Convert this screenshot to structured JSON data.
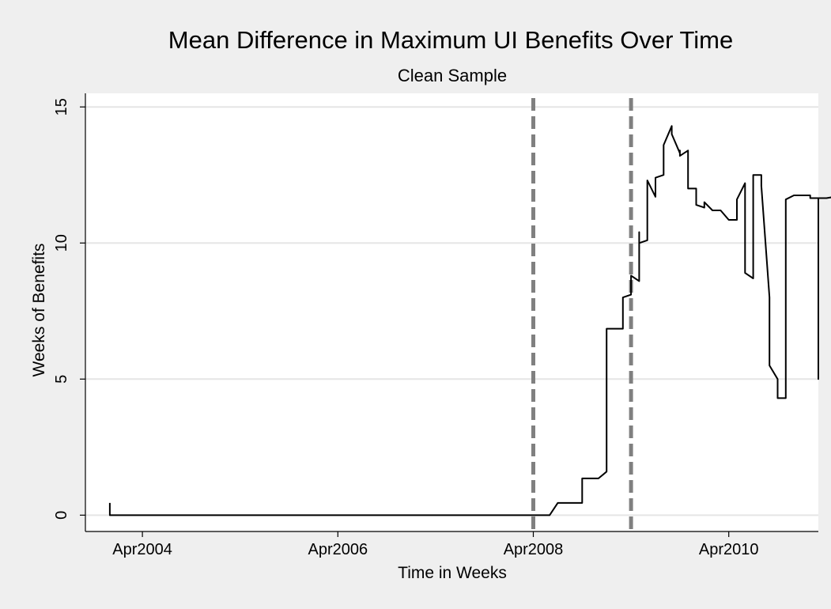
{
  "chart_data": {
    "type": "line",
    "title": "Mean Difference in Maximum UI Benefits Over Time",
    "subtitle": "Clean Sample",
    "xlabel": "Time in Weeks",
    "ylabel": "Weeks of Benefits",
    "x_ticks": [
      "Apr2004",
      "Apr2006",
      "Apr2008",
      "Apr2010"
    ],
    "y_ticks": [
      0,
      5,
      10,
      15
    ],
    "xlim": [
      "2003-09",
      "2011-03"
    ],
    "ylim": [
      -0.6,
      15.5
    ],
    "grid": "horizontal",
    "colors": {
      "line": "#000000",
      "reference": "#808080",
      "grid": "#e5e5e5",
      "plot_bg": "#ffffff",
      "page_bg": "#efefef"
    },
    "reference_lines": [
      {
        "x": "2008-04",
        "style": "dashed"
      },
      {
        "x": "2009-04",
        "style": "dashed"
      }
    ],
    "series": [
      {
        "points": [
          [
            "2003-12",
            0.45
          ],
          [
            "2003-12",
            0.0
          ],
          [
            "2008-04",
            0.0
          ],
          [
            "2008-06",
            0.0
          ],
          [
            "2008-07",
            0.45
          ],
          [
            "2008-10",
            0.45
          ],
          [
            "2008-10",
            1.35
          ],
          [
            "2008-12",
            1.35
          ],
          [
            "2009-01",
            1.6
          ],
          [
            "2009-01",
            6.85
          ],
          [
            "2009-02",
            6.85
          ],
          [
            "2009-03",
            6.85
          ],
          [
            "2009-03",
            7.6
          ],
          [
            "2009-03",
            8.0
          ],
          [
            "2009-04",
            8.1
          ],
          [
            "2009-04",
            8.8
          ],
          [
            "2009-05",
            8.6
          ],
          [
            "2009-05",
            10.4
          ],
          [
            "2009-05",
            10.0
          ],
          [
            "2009-06",
            10.1
          ],
          [
            "2009-06",
            11.1
          ],
          [
            "2009-06",
            12.3
          ],
          [
            "2009-07",
            11.7
          ],
          [
            "2009-07",
            12.4
          ],
          [
            "2009-08",
            12.5
          ],
          [
            "2009-08",
            13.6
          ],
          [
            "2009-09",
            14.3
          ],
          [
            "2009-09",
            14.0
          ],
          [
            "2009-10",
            13.3
          ],
          [
            "2009-10",
            13.4
          ],
          [
            "2009-10",
            13.2
          ],
          [
            "2009-11",
            13.4
          ],
          [
            "2009-11",
            12.0
          ],
          [
            "2009-12",
            12.0
          ],
          [
            "2009-12",
            11.4
          ],
          [
            "2010-01",
            11.3
          ],
          [
            "2010-01",
            11.5
          ],
          [
            "2010-02",
            11.2
          ],
          [
            "2010-03",
            11.2
          ],
          [
            "2010-03",
            11.2
          ],
          [
            "2010-04",
            10.85
          ],
          [
            "2010-05",
            10.85
          ],
          [
            "2010-05",
            11.5
          ],
          [
            "2010-05",
            11.6
          ],
          [
            "2010-06",
            12.2
          ],
          [
            "2010-06",
            12.2
          ],
          [
            "2010-06",
            8.9
          ],
          [
            "2010-07",
            8.7
          ],
          [
            "2010-07",
            12.5
          ],
          [
            "2010-08",
            12.5
          ],
          [
            "2010-08",
            12.1
          ],
          [
            "2010-09",
            8.0
          ],
          [
            "2010-09",
            5.5
          ],
          [
            "2010-10",
            5.0
          ],
          [
            "2010-10",
            4.3
          ],
          [
            "2010-11",
            4.3
          ],
          [
            "2010-11",
            11.6
          ],
          [
            "2010-11",
            11.6
          ],
          [
            "2010-12",
            11.75
          ],
          [
            "2011-02",
            11.75
          ],
          [
            "2011-02",
            11.65
          ],
          [
            "2011-03",
            11.65
          ],
          [
            "2011-03",
            7.5
          ],
          [
            "2011-03",
            5.0
          ],
          [
            "2011-03",
            11.65
          ],
          [
            "2011-04",
            11.65
          ],
          [
            "2011-05",
            11.7
          ],
          [
            "2011-05",
            12.0
          ],
          [
            "2011-05",
            12.0
          ],
          [
            "2011-06",
            12.05
          ]
        ]
      }
    ]
  }
}
